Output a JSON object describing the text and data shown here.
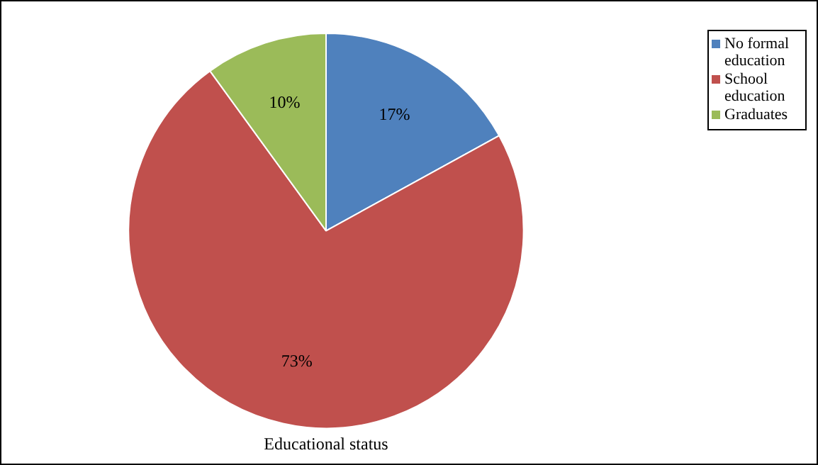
{
  "chart_data": {
    "type": "pie",
    "title": "Educational status",
    "categories": [
      "No formal education",
      "School education",
      "Graduates"
    ],
    "values": [
      17,
      73,
      10
    ],
    "colors": [
      "#4f81bd",
      "#c0504d",
      "#9bbb59"
    ],
    "value_labels": [
      "17%",
      "73%",
      "10%"
    ],
    "legend": "top right"
  }
}
